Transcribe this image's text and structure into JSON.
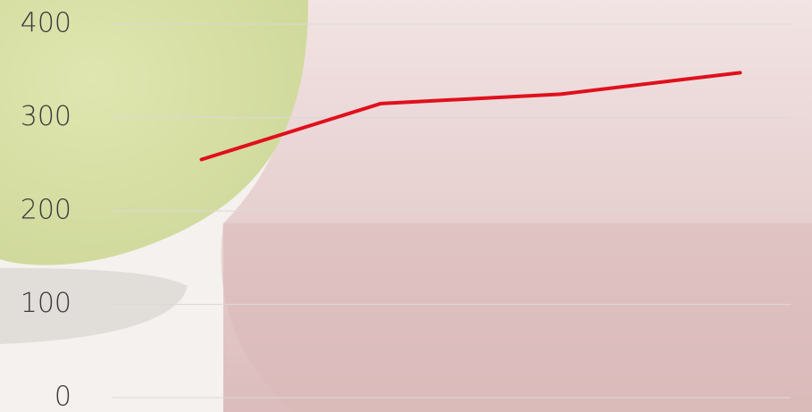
{
  "chart_data": {
    "type": "line",
    "categories": [
      null,
      null,
      null,
      null
    ],
    "values": [
      255,
      315,
      325,
      348
    ],
    "color": "#e0101c",
    "ylim": [
      0,
      400
    ],
    "yticks": [
      0,
      100,
      200,
      300,
      400
    ],
    "grid": true
  }
}
